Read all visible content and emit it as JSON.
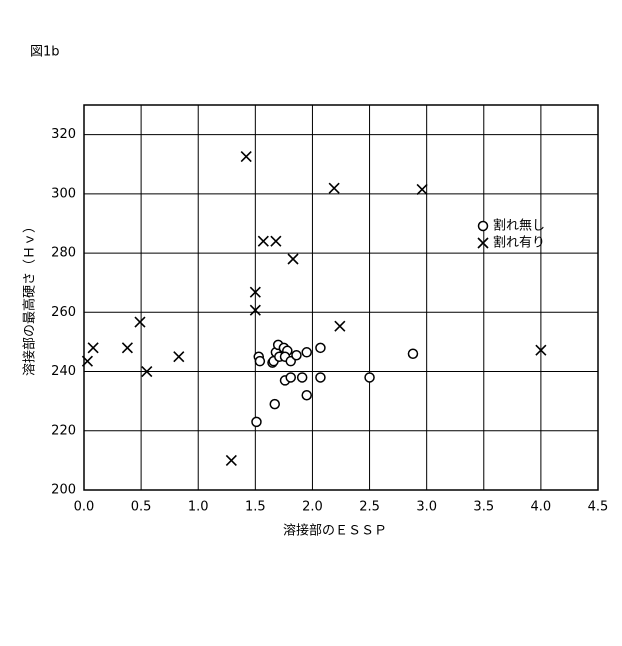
{
  "chart_data": {
    "type": "scatter",
    "title": "図1b",
    "x_label": "溶接部のＥＳＳＰ",
    "y_label": "溶接部の最高硬さ（Ｈｖ）",
    "xlim": [
      0,
      4.5
    ],
    "ylim": [
      200,
      330
    ],
    "xticks": [
      {
        "value": 0,
        "label": "0.0"
      },
      0.5,
      {
        "value": 1,
        "label": "1.0"
      },
      1.5,
      {
        "value": 2,
        "label": "2.0"
      },
      2.5,
      {
        "value": 3,
        "label": "3.0"
      },
      3.5,
      {
        "value": 4,
        "label": "4.0"
      },
      4.5
    ],
    "yticks": [
      200,
      220,
      240,
      260,
      280,
      300,
      320
    ],
    "grid": true,
    "legend": "right",
    "series": [
      {
        "name": "割れ無し",
        "marker": "o",
        "color": "#000000",
        "x": [
          1.51,
          1.53,
          1.54,
          1.65,
          1.68,
          1.7,
          1.66,
          1.71,
          1.75,
          1.78,
          1.76,
          1.76,
          1.81,
          1.81,
          1.86,
          1.91,
          1.95,
          1.95,
          1.67,
          2.07,
          2.07,
          2.5,
          2.88
        ],
        "values": [
          223,
          245,
          243.5,
          243,
          246.5,
          249,
          243.5,
          245,
          248,
          247,
          245,
          237,
          238,
          243.5,
          245.5,
          238,
          246.5,
          232,
          229,
          248,
          238,
          238,
          246
        ]
      },
      {
        "name": "割れ有り",
        "marker": "x",
        "color": "#000000",
        "x": [
          0.03,
          0.08,
          0.38,
          0.49,
          0.55,
          0.83,
          1.29,
          1.42,
          1.5,
          1.5,
          1.57,
          1.68,
          1.83,
          2.19,
          2.24,
          2.96,
          4.0
        ],
        "values": [
          243.5,
          248,
          248,
          256.7,
          240,
          245,
          210,
          312.6,
          266.8,
          260.7,
          284,
          284,
          278,
          301.9,
          255.3,
          301.5,
          247.2
        ]
      }
    ]
  }
}
